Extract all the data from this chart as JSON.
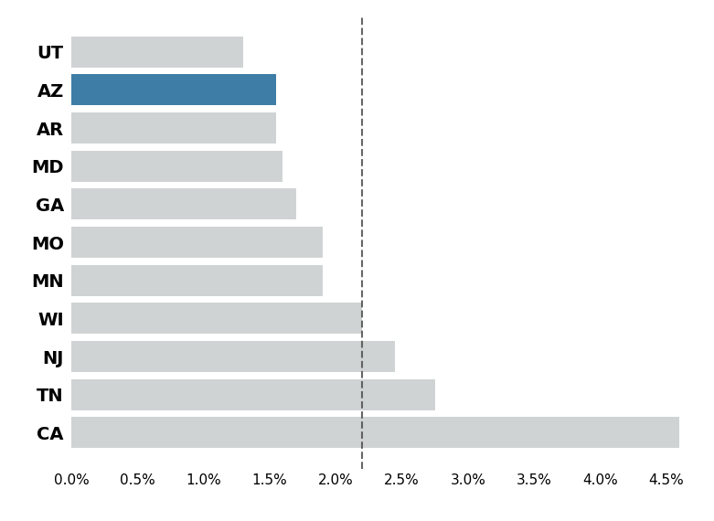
{
  "states": [
    "CA",
    "TN",
    "NJ",
    "WI",
    "MN",
    "MO",
    "GA",
    "MD",
    "AR",
    "AZ",
    "UT"
  ],
  "values": [
    0.046,
    0.0275,
    0.0245,
    0.022,
    0.019,
    0.019,
    0.017,
    0.016,
    0.0155,
    0.0155,
    0.013
  ],
  "bar_colors": [
    "#d0d3d4",
    "#d0d3d4",
    "#d0d3d4",
    "#d0d3d4",
    "#d0d3d4",
    "#d0d3d4",
    "#d0d3d4",
    "#d0d3d4",
    "#d0d3d4",
    "#3e7ea6",
    "#d0d3d4"
  ],
  "highlight_state": "AZ",
  "dashed_line_x": 0.022,
  "dashed_line_color": "#555555",
  "xlim": [
    0,
    0.047
  ],
  "xticks": [
    0.0,
    0.005,
    0.01,
    0.015,
    0.02,
    0.025,
    0.03,
    0.035,
    0.04,
    0.045
  ],
  "background_color": "#ffffff",
  "bar_height": 0.82,
  "label_fontsize": 14,
  "tick_fontsize": 11
}
